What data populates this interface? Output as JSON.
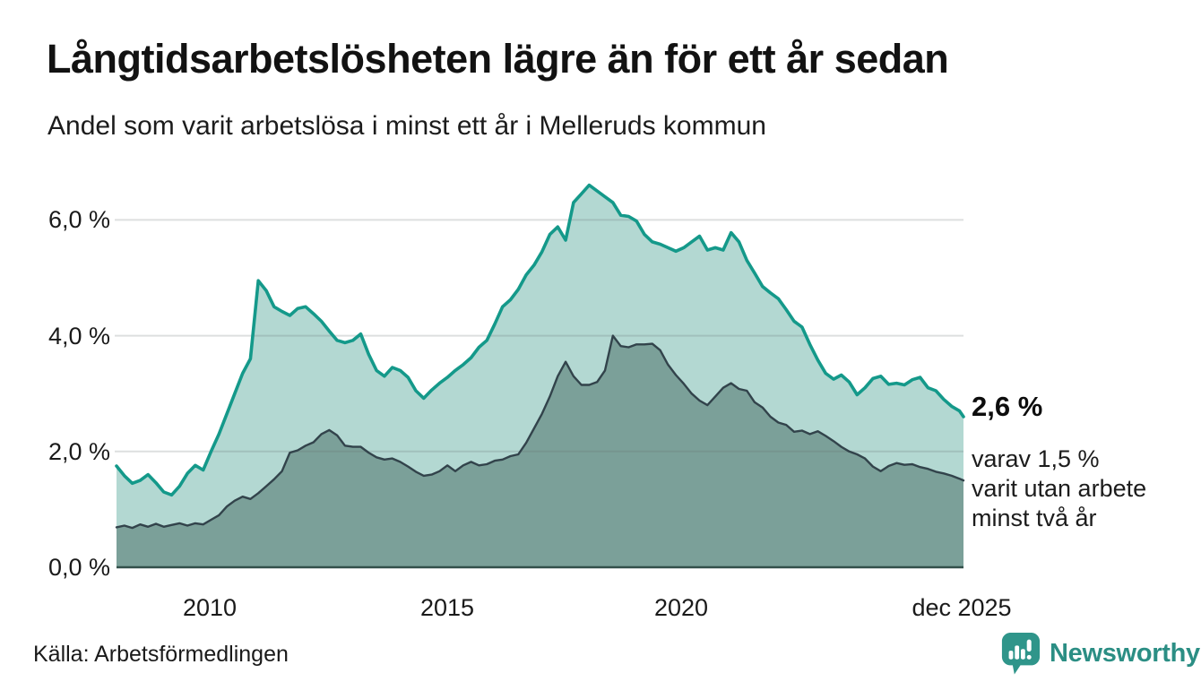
{
  "header": {
    "title": "Långtidsarbetslösheten lägre än för ett år sedan",
    "subtitle": "Andel som varit arbetslösa i minst ett år i Melleruds kommun"
  },
  "chart_data": {
    "type": "area",
    "title": "Långtidsarbetslösheten lägre än för ett år sedan",
    "subtitle": "Andel som varit arbetslösa i minst ett år i Melleruds kommun",
    "unit": "%",
    "x_start": 2008.0,
    "x_end": 2025.9167,
    "points_per_year": 6,
    "grid": true,
    "legend_position": "none",
    "y_axis": {
      "ticks": [
        "6,0 %",
        "4,0 %",
        "2,0 %",
        "0,0 %"
      ],
      "tick_values": [
        0,
        2,
        4,
        6
      ],
      "ylim": [
        0,
        6.8
      ]
    },
    "x_axis": {
      "ticks": [
        {
          "label": "2010",
          "year": 2010
        },
        {
          "label": "2015",
          "year": 2015
        },
        {
          "label": "2020",
          "year": 2020
        },
        {
          "label": "dec 2025",
          "year": 2025.9167
        }
      ]
    },
    "series": [
      {
        "name": "Arbetslösa minst ett år",
        "color": "#14998a",
        "fill": "#b3d8d2",
        "last_value": 2.6,
        "values": [
          1.75,
          1.58,
          1.45,
          1.5,
          1.6,
          1.46,
          1.3,
          1.25,
          1.4,
          1.62,
          1.76,
          1.68,
          2.0,
          2.3,
          2.65,
          3.0,
          3.35,
          3.6,
          4.95,
          4.78,
          4.5,
          4.42,
          4.35,
          4.47,
          4.5,
          4.38,
          4.25,
          4.08,
          3.92,
          3.88,
          3.92,
          4.03,
          3.68,
          3.4,
          3.3,
          3.45,
          3.4,
          3.28,
          3.05,
          2.92,
          3.06,
          3.18,
          3.28,
          3.4,
          3.5,
          3.62,
          3.8,
          3.92,
          4.2,
          4.5,
          4.62,
          4.8,
          5.05,
          5.22,
          5.45,
          5.75,
          5.88,
          5.65,
          6.3,
          6.45,
          6.6,
          6.5,
          6.4,
          6.3,
          6.08,
          6.06,
          5.98,
          5.75,
          5.62,
          5.58,
          5.52,
          5.46,
          5.52,
          5.62,
          5.72,
          5.48,
          5.52,
          5.48,
          5.78,
          5.62,
          5.3,
          5.08,
          4.85,
          4.74,
          4.64,
          4.45,
          4.25,
          4.15,
          3.85,
          3.58,
          3.35,
          3.25,
          3.32,
          3.2,
          2.98,
          3.1,
          3.26,
          3.3,
          3.16,
          3.18,
          3.15,
          3.24,
          3.28,
          3.1,
          3.05,
          2.9,
          2.78,
          2.7,
          2.6
        ]
      },
      {
        "name": "Varit utan arbete minst två år",
        "color": "#32434b",
        "fill": "#7ba099",
        "last_value": 1.5,
        "values": [
          0.69,
          0.72,
          0.68,
          0.74,
          0.7,
          0.75,
          0.7,
          0.73,
          0.76,
          0.72,
          0.76,
          0.74,
          0.82,
          0.9,
          1.05,
          1.15,
          1.22,
          1.18,
          1.28,
          1.4,
          1.52,
          1.66,
          1.98,
          2.02,
          2.1,
          2.16,
          2.3,
          2.37,
          2.28,
          2.1,
          2.08,
          2.08,
          1.98,
          1.9,
          1.86,
          1.88,
          1.82,
          1.74,
          1.65,
          1.58,
          1.6,
          1.66,
          1.76,
          1.66,
          1.76,
          1.82,
          1.76,
          1.78,
          1.84,
          1.86,
          1.92,
          1.95,
          2.15,
          2.4,
          2.65,
          2.95,
          3.3,
          3.55,
          3.3,
          3.15,
          3.15,
          3.2,
          3.4,
          4.0,
          3.82,
          3.8,
          3.85,
          3.85,
          3.86,
          3.75,
          3.5,
          3.32,
          3.17,
          3.0,
          2.88,
          2.8,
          2.95,
          3.1,
          3.18,
          3.08,
          3.05,
          2.85,
          2.76,
          2.6,
          2.5,
          2.46,
          2.34,
          2.36,
          2.3,
          2.35,
          2.27,
          2.18,
          2.08,
          2.0,
          1.95,
          1.88,
          1.74,
          1.66,
          1.75,
          1.8,
          1.77,
          1.78,
          1.73,
          1.7,
          1.65,
          1.62,
          1.58,
          1.53,
          1.5
        ]
      }
    ],
    "annotation": {
      "value_label": "2,6 %",
      "detail_lines": [
        "varav 1,5 %",
        "varit utan arbete",
        "minst två år"
      ],
      "detail_text": "varav 1,5 %\nvarit utan arbete\nminst två år"
    }
  },
  "colors": {
    "background": "#ffffff",
    "line_one_year": "#14998a",
    "fill_one_year": "#b3d8d2",
    "line_two_years": "#32434b",
    "fill_two_years": "#7ba099",
    "gridline": "#e2e2e2",
    "baseline": "#33504b",
    "brand_teal": "#2b8e84",
    "text": "#111111"
  },
  "footer": {
    "source": "Källa: Arbetsförmedlingen",
    "brand": "Newsworthy"
  }
}
